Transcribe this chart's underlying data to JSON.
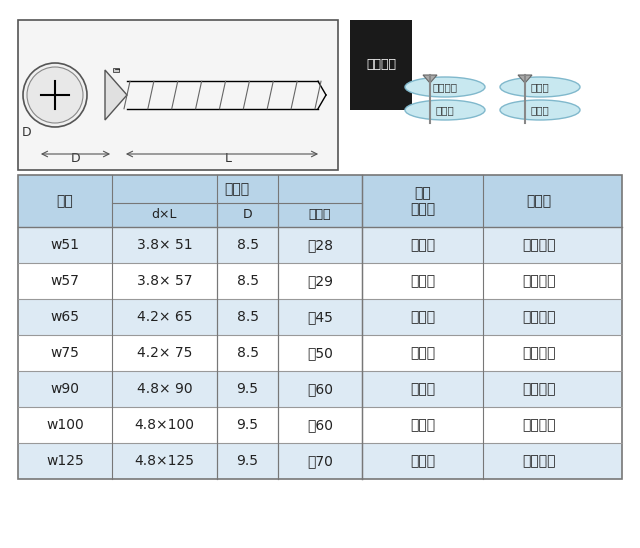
{
  "bg_color": "#ffffff",
  "table_header_bg": "#b8d4e8",
  "table_row_odd_bg": "#ddeaf4",
  "table_row_even_bg": "#ffffff",
  "table_border_color": "#888888",
  "header_top": [
    "品番",
    "サイズ",
    "",
    "",
    "ネジ\nタイプ",
    "仕上げ"
  ],
  "header_sub": [
    "",
    "d×L",
    "D",
    "ネジ部",
    "",
    ""
  ],
  "col_labels": [
    "品番",
    "d×L",
    "D",
    "ネジ部",
    "ネジタイプ",
    "仕上げ"
  ],
  "rows": [
    [
      "w51",
      "3.8× 51",
      "8.5",
      "半28",
      "半ネジ",
      "ユニクロ"
    ],
    [
      "w57",
      "3.8× 57",
      "8.5",
      "半29",
      "半ネジ",
      "ユニクロ"
    ],
    [
      "w65",
      "4.2× 65",
      "8.5",
      "半45",
      "半ネジ",
      "ユニクロ"
    ],
    [
      "w75",
      "4.2× 75",
      "8.5",
      "半50",
      "半ネジ",
      "ユニクロ"
    ],
    [
      "w90",
      "4.8× 90",
      "9.5",
      "半60",
      "半ネジ",
      "ユニクロ"
    ],
    [
      "w100",
      "4.8×100",
      "9.5",
      "半60",
      "半ネジ",
      "ユニクロ"
    ],
    [
      "w125",
      "4.8×125",
      "9.5",
      "半70",
      "半ネジ",
      "ユニクロ"
    ]
  ],
  "image_border_color": "#aaaaaa",
  "diagram_bg": "#ffffff",
  "label_color": "#333333",
  "ketsugou_bg": "#1a1a1a",
  "ketsugou_text": "結合素材",
  "bubble_color": "#c8e8f0"
}
